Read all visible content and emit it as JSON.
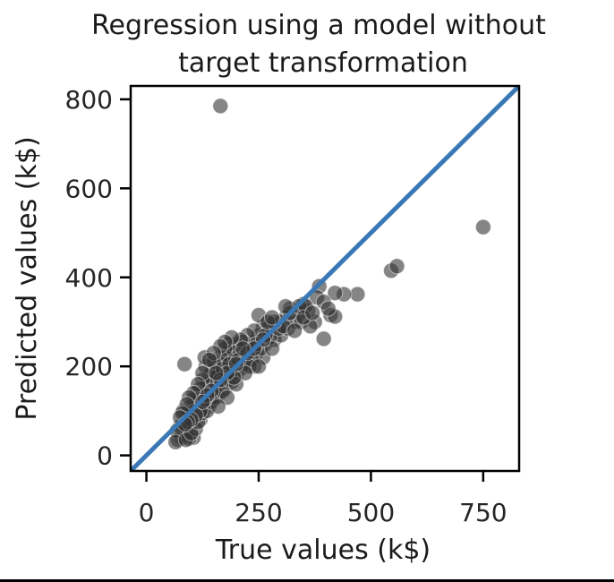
{
  "chart_data": {
    "type": "scatter",
    "title": [
      "Regression using a model without",
      "target transformation"
    ],
    "xlabel": "True values (k$)",
    "ylabel": "Predicted values (k$)",
    "xlim": [
      -35,
      830
    ],
    "ylim": [
      -35,
      830
    ],
    "xticks": [
      0,
      250,
      500,
      750
    ],
    "yticks": [
      0,
      200,
      400,
      600,
      800
    ],
    "grid": false,
    "colors": {
      "points": "#333333",
      "identity_line": "#3a78b5"
    },
    "reference_line": {
      "label": "",
      "from": [
        -35,
        -35
      ],
      "to": [
        830,
        830
      ]
    },
    "points": [
      [
        165,
        785
      ],
      [
        750,
        513
      ],
      [
        545,
        415
      ],
      [
        558,
        425
      ],
      [
        470,
        362
      ],
      [
        440,
        362
      ],
      [
        420,
        365
      ],
      [
        410,
        315
      ],
      [
        420,
        312
      ],
      [
        395,
        262
      ],
      [
        385,
        380
      ],
      [
        375,
        300
      ],
      [
        360,
        325
      ],
      [
        350,
        340
      ],
      [
        340,
        320
      ],
      [
        320,
        330
      ],
      [
        310,
        310
      ],
      [
        300,
        300
      ],
      [
        290,
        280
      ],
      [
        280,
        295
      ],
      [
        270,
        285
      ],
      [
        260,
        290
      ],
      [
        250,
        270
      ],
      [
        250,
        315
      ],
      [
        240,
        255
      ],
      [
        240,
        280
      ],
      [
        230,
        245
      ],
      [
        225,
        270
      ],
      [
        220,
        235
      ],
      [
        215,
        255
      ],
      [
        210,
        220
      ],
      [
        205,
        240
      ],
      [
        200,
        230
      ],
      [
        200,
        250
      ],
      [
        195,
        210
      ],
      [
        190,
        230
      ],
      [
        185,
        250
      ],
      [
        180,
        200
      ],
      [
        178,
        220
      ],
      [
        175,
        240
      ],
      [
        170,
        180
      ],
      [
        168,
        205
      ],
      [
        165,
        220
      ],
      [
        160,
        190
      ],
      [
        158,
        160
      ],
      [
        155,
        200
      ],
      [
        152,
        175
      ],
      [
        150,
        150
      ],
      [
        148,
        190
      ],
      [
        145,
        165
      ],
      [
        142,
        140
      ],
      [
        140,
        180
      ],
      [
        138,
        120
      ],
      [
        135,
        160
      ],
      [
        132,
        200
      ],
      [
        130,
        140
      ],
      [
        128,
        110
      ],
      [
        125,
        170
      ],
      [
        122,
        130
      ],
      [
        120,
        150
      ],
      [
        118,
        95
      ],
      [
        115,
        120
      ],
      [
        112,
        140
      ],
      [
        110,
        105
      ],
      [
        108,
        80
      ],
      [
        105,
        125
      ],
      [
        102,
        90
      ],
      [
        100,
        110
      ],
      [
        98,
        70
      ],
      [
        95,
        100
      ],
      [
        92,
        60
      ],
      [
        90,
        85
      ],
      [
        88,
        50
      ],
      [
        85,
        75
      ],
      [
        82,
        100
      ],
      [
        80,
        55
      ],
      [
        78,
        40
      ],
      [
        75,
        65
      ],
      [
        70,
        35
      ],
      [
        68,
        55
      ],
      [
        65,
        30
      ],
      [
        85,
        205
      ],
      [
        105,
        40
      ],
      [
        95,
        38
      ],
      [
        88,
        35
      ],
      [
        130,
        220
      ],
      [
        150,
        210
      ],
      [
        175,
        150
      ],
      [
        200,
        180
      ],
      [
        225,
        210
      ],
      [
        245,
        230
      ],
      [
        265,
        250
      ],
      [
        285,
        260
      ],
      [
        300,
        270
      ],
      [
        315,
        285
      ],
      [
        330,
        300
      ],
      [
        345,
        300
      ],
      [
        365,
        290
      ],
      [
        380,
        355
      ],
      [
        395,
        345
      ],
      [
        405,
        330
      ],
      [
        260,
        220
      ],
      [
        240,
        200
      ],
      [
        210,
        195
      ],
      [
        190,
        165
      ],
      [
        160,
        135
      ],
      [
        140,
        110
      ],
      [
        120,
        80
      ],
      [
        110,
        60
      ],
      [
        100,
        50
      ],
      [
        115,
        75
      ],
      [
        125,
        95
      ],
      [
        135,
        100
      ],
      [
        145,
        120
      ],
      [
        155,
        130
      ],
      [
        170,
        145
      ],
      [
        185,
        170
      ],
      [
        195,
        185
      ],
      [
        215,
        205
      ],
      [
        235,
        215
      ],
      [
        255,
        240
      ],
      [
        275,
        265
      ],
      [
        295,
        285
      ],
      [
        305,
        290
      ],
      [
        280,
        240
      ],
      [
        230,
        200
      ],
      [
        200,
        160
      ],
      [
        180,
        130
      ],
      [
        160,
        110
      ],
      [
        210,
        260
      ],
      [
        190,
        265
      ],
      [
        175,
        255
      ],
      [
        165,
        245
      ],
      [
        150,
        230
      ],
      [
        140,
        215
      ],
      [
        125,
        185
      ],
      [
        115,
        160
      ],
      [
        105,
        140
      ],
      [
        95,
        130
      ],
      [
        90,
        115
      ],
      [
        80,
        95
      ],
      [
        75,
        85
      ],
      [
        120,
        100
      ],
      [
        130,
        125
      ],
      [
        145,
        145
      ],
      [
        170,
        195
      ],
      [
        185,
        205
      ],
      [
        205,
        215
      ],
      [
        225,
        230
      ],
      [
        245,
        250
      ],
      [
        265,
        270
      ],
      [
        285,
        300
      ],
      [
        320,
        320
      ],
      [
        340,
        335
      ],
      [
        355,
        335
      ],
      [
        310,
        335
      ],
      [
        330,
        280
      ],
      [
        350,
        310
      ],
      [
        370,
        320
      ],
      [
        250,
        200
      ],
      [
        220,
        185
      ],
      [
        195,
        175
      ],
      [
        180,
        185
      ],
      [
        165,
        170
      ],
      [
        155,
        185
      ],
      [
        135,
        135
      ],
      [
        125,
        120
      ],
      [
        110,
        90
      ],
      [
        100,
        80
      ],
      [
        92,
        75
      ],
      [
        86,
        70
      ],
      [
        270,
        300
      ],
      [
        280,
        310
      ],
      [
        260,
        260
      ],
      [
        240,
        240
      ],
      [
        215,
        240
      ],
      [
        200,
        205
      ]
    ]
  }
}
